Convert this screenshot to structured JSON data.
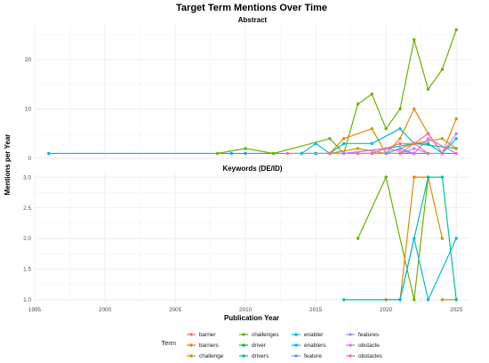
{
  "chart_data": {
    "type": "line",
    "title": "Target Term Mentions Over Time",
    "xlabel": "Publication Year",
    "ylabel": "Mentions per Year",
    "xlim": [
      1995,
      2026
    ],
    "x_ticks": [
      1995,
      2000,
      2005,
      2010,
      2015,
      2020,
      2025
    ],
    "grid": true,
    "legend_position": "bottom",
    "legend_title": "Term",
    "terms": [
      {
        "name": "barrier",
        "color": "#F8766D"
      },
      {
        "name": "barriers",
        "color": "#E58700"
      },
      {
        "name": "challenge",
        "color": "#C99800"
      },
      {
        "name": "challenges",
        "color": "#6BB100"
      },
      {
        "name": "driver",
        "color": "#00BA38"
      },
      {
        "name": "drivers",
        "color": "#00C19F"
      },
      {
        "name": "enabler",
        "color": "#00BCD8"
      },
      {
        "name": "enablers",
        "color": "#00B0F6"
      },
      {
        "name": "feature",
        "color": "#619CFF"
      },
      {
        "name": "features",
        "color": "#B983FF"
      },
      {
        "name": "obstacle",
        "color": "#E76BF3"
      },
      {
        "name": "obstacles",
        "color": "#FF67A4"
      }
    ],
    "panels": [
      {
        "title": "Abstract",
        "ylim": [
          0,
          27
        ],
        "y_ticks": [
          0,
          10,
          20
        ],
        "series": [
          {
            "name": "enablers",
            "x": [
              1996,
              2009,
              2010,
              2012,
              2014,
              2015,
              2016,
              2017,
              2018,
              2019,
              2020,
              2021,
              2022,
              2023,
              2024,
              2025
            ],
            "y": [
              1,
              1,
              1,
              1,
              1,
              1,
              1,
              1,
              1,
              1,
              1,
              1,
              1,
              1,
              1,
              1
            ]
          },
          {
            "name": "challenges",
            "x": [
              2008,
              2010,
              2012,
              2016,
              2017,
              2018,
              2019,
              2020,
              2021,
              2022,
              2023,
              2024,
              2025
            ],
            "y": [
              1,
              2,
              1,
              4,
              1,
              11,
              13,
              6,
              10,
              24,
              14,
              18,
              26
            ]
          },
          {
            "name": "barriers",
            "x": [
              2016,
              2017,
              2019,
              2020,
              2021,
              2022,
              2023,
              2024,
              2025
            ],
            "y": [
              1,
              4,
              6,
              1,
              4,
              10,
              5,
              1,
              8
            ]
          },
          {
            "name": "enabler",
            "x": [
              2014,
              2015,
              2016,
              2017,
              2019,
              2021,
              2022,
              2023,
              2024,
              2025
            ],
            "y": [
              1,
              3,
              1,
              3,
              3,
              6,
              3,
              3,
              1,
              4
            ]
          },
          {
            "name": "drivers",
            "x": [
              2015,
              2017,
              2020,
              2022,
              2025
            ],
            "y": [
              1,
              1,
              2,
              3,
              2
            ]
          },
          {
            "name": "challenge",
            "x": [
              2016,
              2018,
              2020,
              2022,
              2024,
              2025
            ],
            "y": [
              1,
              2,
              1,
              3,
              4,
              2
            ]
          },
          {
            "name": "features",
            "x": [
              2019,
              2021,
              2022,
              2023,
              2024,
              2025
            ],
            "y": [
              1,
              1,
              2,
              1,
              1,
              5
            ]
          },
          {
            "name": "obstacles",
            "x": [
              2013,
              2016,
              2019,
              2021,
              2022,
              2023,
              2024
            ],
            "y": [
              1,
              1,
              1,
              3,
              3,
              5,
              1
            ]
          },
          {
            "name": "barrier",
            "x": [
              2016,
              2018,
              2020,
              2021,
              2022,
              2023
            ],
            "y": [
              1,
              1,
              1,
              1,
              3,
              1
            ]
          },
          {
            "name": "feature",
            "x": [
              2020,
              2021,
              2022
            ],
            "y": [
              1,
              2,
              1
            ]
          },
          {
            "name": "obstacle",
            "x": [
              2017,
              2020,
              2022,
              2023,
              2025
            ],
            "y": [
              1,
              2,
              1,
              4,
              1
            ]
          }
        ]
      },
      {
        "title": "Keywords (DE/ID)",
        "ylim": [
          0.94,
          3.06
        ],
        "y_ticks": [
          1.0,
          1.5,
          2.0,
          2.5,
          3.0
        ],
        "y_tick_labels": [
          "1.0",
          "1.5",
          "2.0",
          "2.5",
          "3.0"
        ],
        "series": [
          {
            "name": "challenges",
            "x": [
              2018,
              2020,
              2022,
              2023
            ],
            "y": [
              2,
              3,
              1,
              3
            ]
          },
          {
            "name": "barriers",
            "x": [
              2020,
              2021,
              2022,
              2023,
              2024
            ],
            "y": [
              1,
              1,
              3,
              3,
              2
            ]
          },
          {
            "name": "challenge",
            "x": [
              2024,
              2025
            ],
            "y": [
              1,
              1
            ]
          },
          {
            "name": "drivers",
            "x": [
              2017,
              2021,
              2023,
              2024,
              2025
            ],
            "y": [
              1,
              1,
              3,
              3,
              1
            ]
          },
          {
            "name": "enabler",
            "x": [
              2021,
              2022,
              2023,
              2025
            ],
            "y": [
              1,
              2,
              1,
              2
            ]
          }
        ]
      }
    ]
  }
}
